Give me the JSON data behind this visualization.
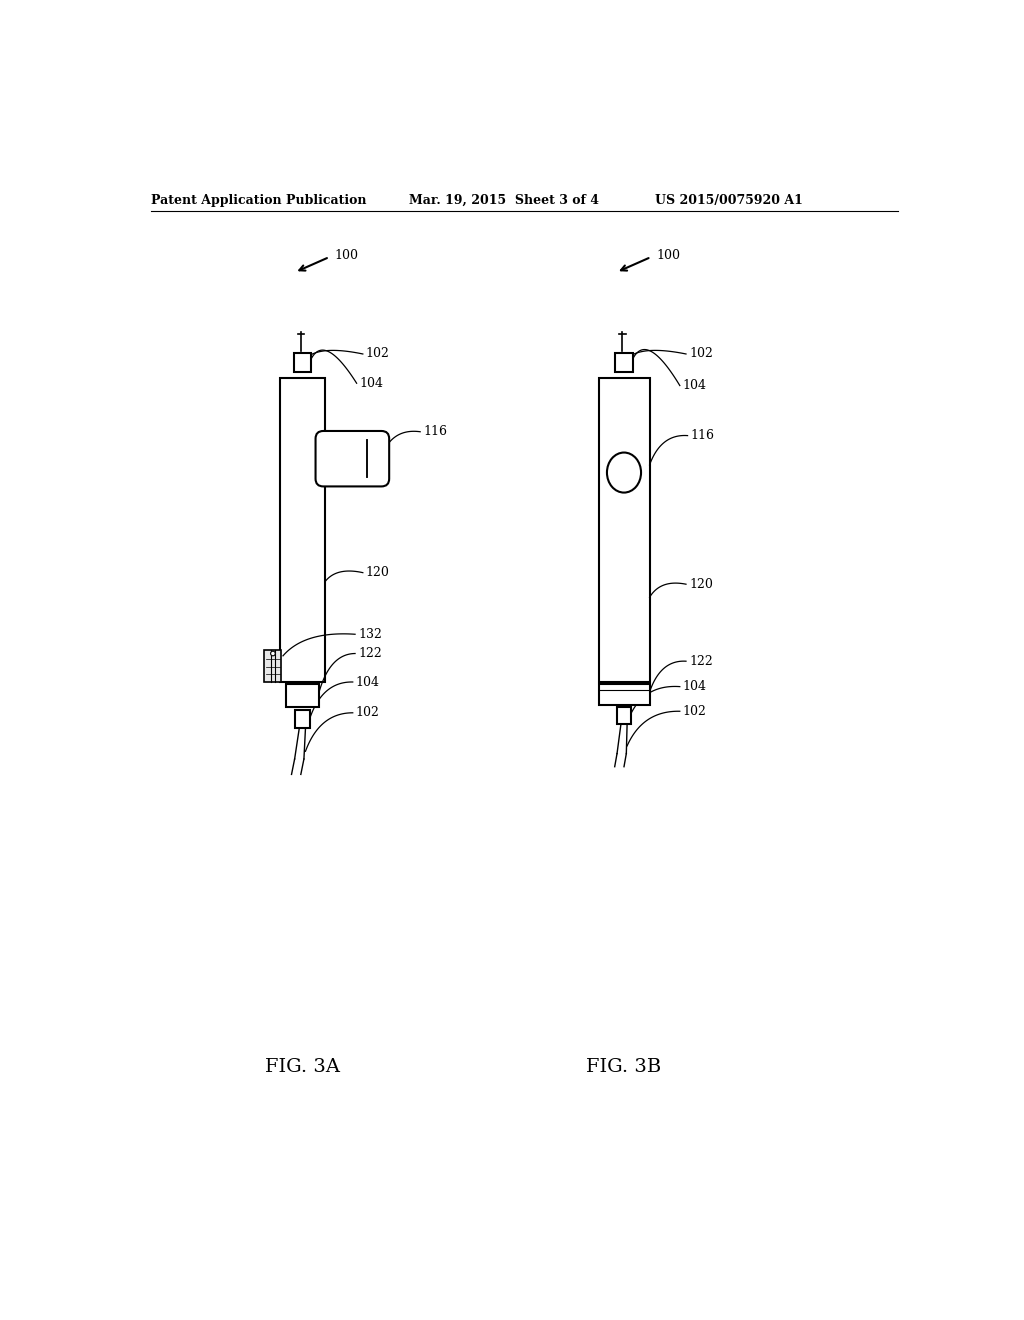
{
  "bg_color": "#ffffff",
  "line_color": "#000000",
  "header_left": "Patent Application Publication",
  "header_mid": "Mar. 19, 2015  Sheet 3 of 4",
  "header_right": "US 2015/0075920 A1",
  "fig_a_label": "FIG. 3A",
  "fig_b_label": "FIG. 3B",
  "ref_100": "100",
  "ref_102": "102",
  "ref_104": "104",
  "ref_116": "116",
  "ref_120": "120",
  "ref_122": "122",
  "ref_132": "132",
  "header_fontsize": 9,
  "label_fontsize": 9,
  "fig_label_fontsize": 14
}
